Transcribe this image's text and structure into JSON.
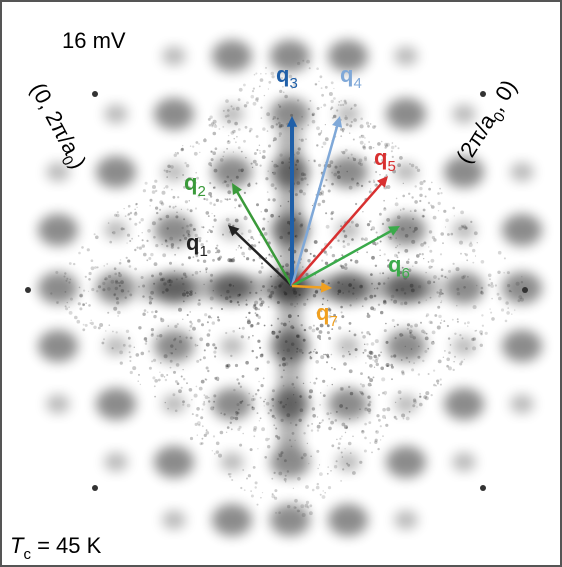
{
  "energy_label": "16 mV",
  "coordinate_left": {
    "pre": "(0, 2π/a",
    "sub": "0",
    "post": ")"
  },
  "coordinate_right": {
    "pre": "(2π/a",
    "sub": "0",
    "post": ", 0)"
  },
  "temperature": {
    "base": "T",
    "sub": "c",
    "post": " = 45 K"
  },
  "vectors": [
    {
      "base": "q",
      "sub": "1",
      "color": "#222222"
    },
    {
      "base": "q",
      "sub": "2",
      "color": "#3a9a3a"
    },
    {
      "base": "q",
      "sub": "3",
      "color": "#1f5fa8"
    },
    {
      "base": "q",
      "sub": "4",
      "color": "#7fa8d8"
    },
    {
      "base": "q",
      "sub": "5",
      "color": "#d83030"
    },
    {
      "base": "q",
      "sub": "6",
      "color": "#3aaa4a"
    },
    {
      "base": "q",
      "sub": "7",
      "color": "#f0a020"
    }
  ]
}
